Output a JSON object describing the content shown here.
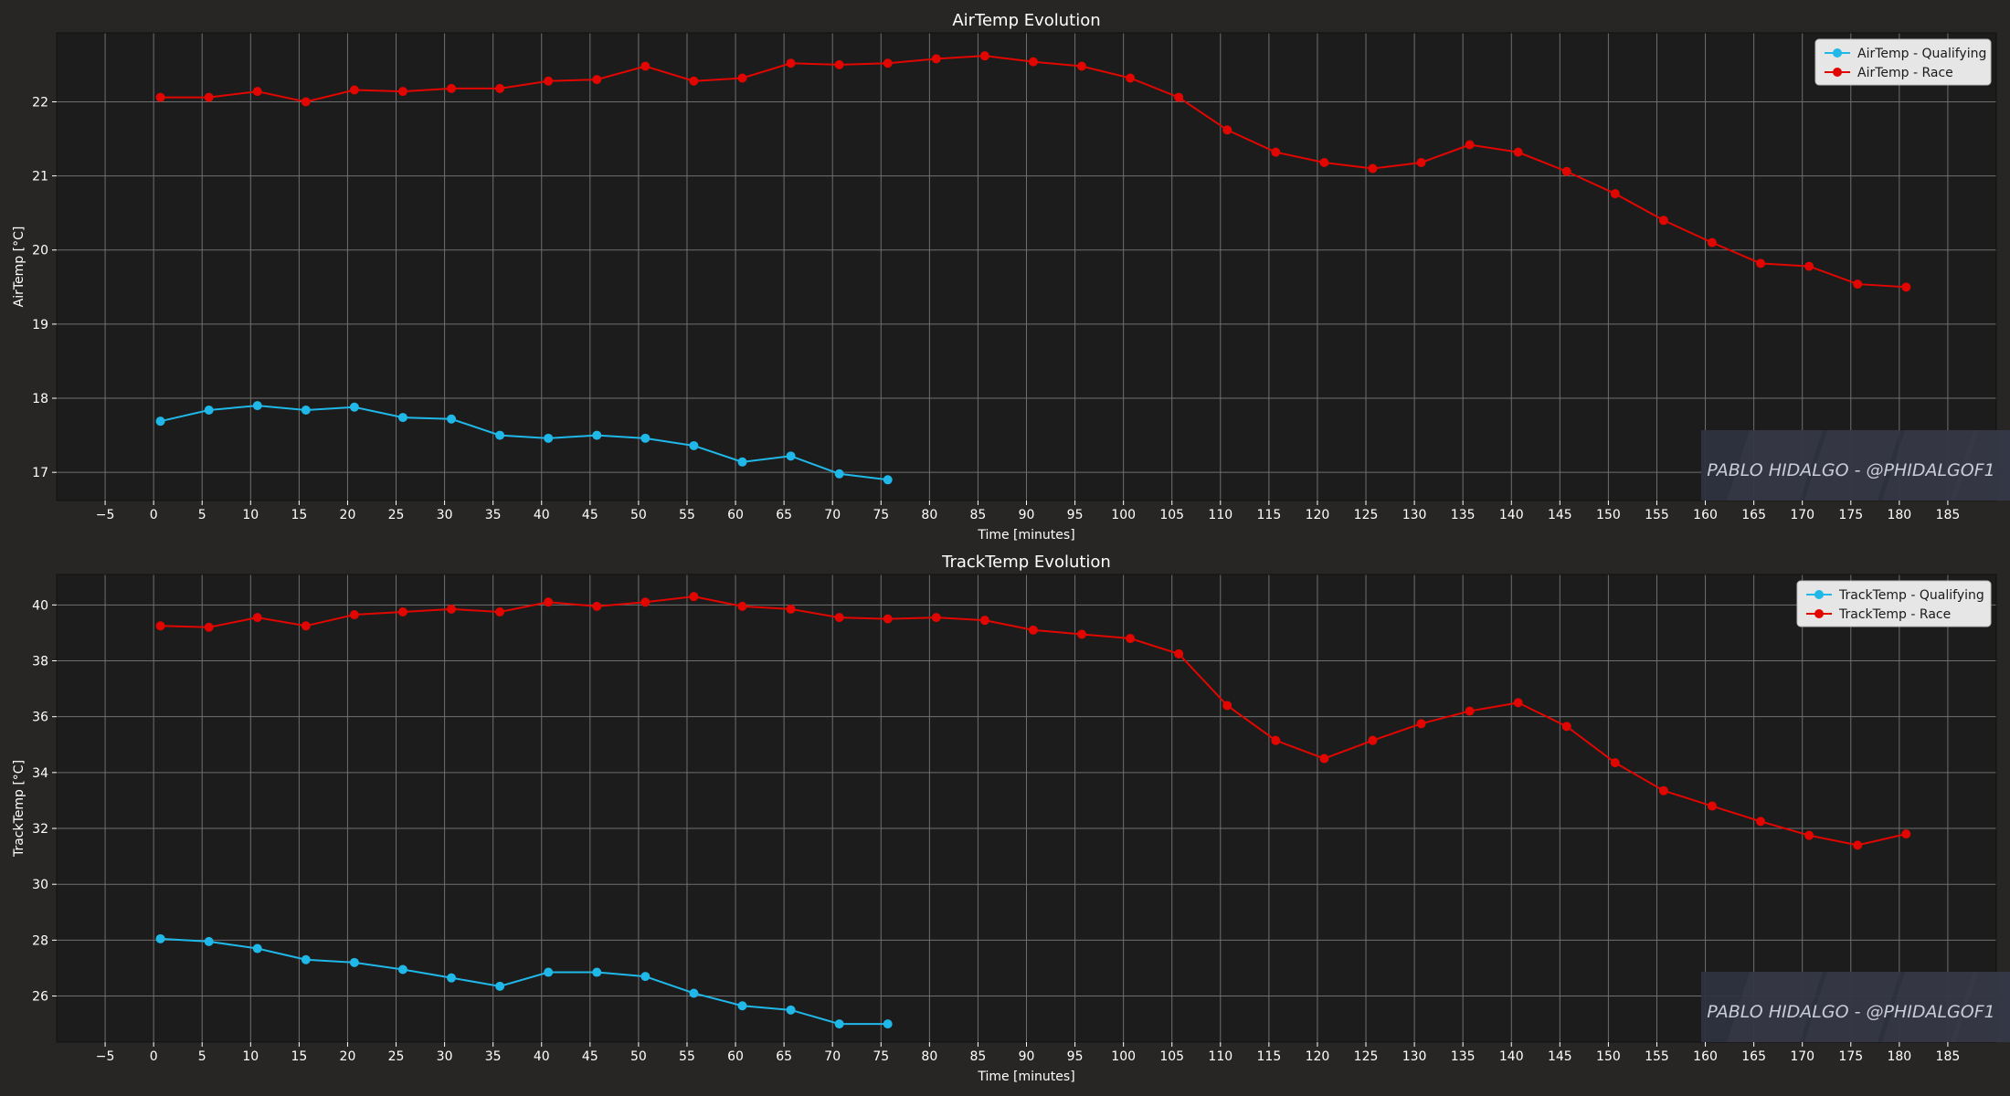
{
  "colors": {
    "figure_bg": "#282625",
    "plot_bg": "#1d1c1c",
    "grid": "#6f6f6f",
    "text": "#ffffff",
    "qualifying": "#1fb8e8",
    "race": "#e10600",
    "legend_bg": "#e6e6e6",
    "watermark_bg": "#2f3240"
  },
  "watermark": {
    "text": "PABLO HIDALGO - @PHIDALGOF1"
  },
  "chart_data": [
    {
      "type": "line",
      "title": "AirTemp Evolution",
      "xlabel": "Time [minutes]",
      "ylabel": "AirTemp [°C]",
      "xlim": [
        -10,
        190
      ],
      "ylim": [
        16.62,
        22.93
      ],
      "xticks": [
        -5,
        0,
        5,
        10,
        15,
        20,
        25,
        30,
        35,
        40,
        45,
        50,
        55,
        60,
        65,
        70,
        75,
        80,
        85,
        90,
        95,
        100,
        105,
        110,
        115,
        120,
        125,
        130,
        135,
        140,
        145,
        150,
        155,
        160,
        165,
        170,
        175,
        180,
        185
      ],
      "yticks": [
        17,
        18,
        19,
        20,
        21,
        22
      ],
      "grid": true,
      "legend": "top-right",
      "series": [
        {
          "name": "AirTemp - Qualifying",
          "color": "qualifying",
          "x": [
            0.7,
            5.7,
            10.7,
            15.7,
            20.7,
            25.7,
            30.7,
            35.7,
            40.7,
            45.7,
            50.7,
            55.7,
            60.7,
            65.7,
            70.7,
            75.7
          ],
          "y": [
            17.69,
            17.84,
            17.9,
            17.84,
            17.88,
            17.74,
            17.72,
            17.5,
            17.46,
            17.5,
            17.46,
            17.36,
            17.14,
            17.22,
            16.98,
            16.9
          ]
        },
        {
          "name": "AirTemp - Race",
          "color": "race",
          "x": [
            0.7,
            5.7,
            10.7,
            15.7,
            20.7,
            25.7,
            30.7,
            35.7,
            40.7,
            45.7,
            50.7,
            55.7,
            60.7,
            65.7,
            70.7,
            75.7,
            80.7,
            85.7,
            90.7,
            95.7,
            100.7,
            105.7,
            110.7,
            115.7,
            120.7,
            125.7,
            130.7,
            135.7,
            140.7,
            145.7,
            150.7,
            155.7,
            160.7,
            165.7,
            170.7,
            175.7,
            180.7
          ],
          "y": [
            22.06,
            22.06,
            22.14,
            22.0,
            22.16,
            22.14,
            22.18,
            22.18,
            22.28,
            22.3,
            22.48,
            22.28,
            22.32,
            22.52,
            22.5,
            22.52,
            22.58,
            22.62,
            22.54,
            22.48,
            22.32,
            22.06,
            21.62,
            21.32,
            21.18,
            21.1,
            21.18,
            21.42,
            21.32,
            21.06,
            20.76,
            20.4,
            20.1,
            19.82,
            19.78,
            19.54,
            19.5
          ]
        }
      ]
    },
    {
      "type": "line",
      "title": "TrackTemp Evolution",
      "xlabel": "Time [minutes]",
      "ylabel": "TrackTemp [°C]",
      "xlim": [
        -10,
        190
      ],
      "ylim": [
        24.35,
        41.09
      ],
      "xticks": [
        -5,
        0,
        5,
        10,
        15,
        20,
        25,
        30,
        35,
        40,
        45,
        50,
        55,
        60,
        65,
        70,
        75,
        80,
        85,
        90,
        95,
        100,
        105,
        110,
        115,
        120,
        125,
        130,
        135,
        140,
        145,
        150,
        155,
        160,
        165,
        170,
        175,
        180,
        185
      ],
      "yticks": [
        26,
        28,
        30,
        32,
        34,
        36,
        38,
        40
      ],
      "grid": true,
      "legend": "top-right",
      "series": [
        {
          "name": "TrackTemp - Qualifying",
          "color": "qualifying",
          "x": [
            0.7,
            5.7,
            10.7,
            15.7,
            20.7,
            25.7,
            30.7,
            35.7,
            40.7,
            45.7,
            50.7,
            55.7,
            60.7,
            65.7,
            70.7,
            75.7
          ],
          "y": [
            28.05,
            27.95,
            27.7,
            27.3,
            27.2,
            26.95,
            26.65,
            26.35,
            26.85,
            26.85,
            26.7,
            26.1,
            25.65,
            25.5,
            25.0,
            25.0
          ]
        },
        {
          "name": "TrackTemp - Race",
          "color": "race",
          "x": [
            0.7,
            5.7,
            10.7,
            15.7,
            20.7,
            25.7,
            30.7,
            35.7,
            40.7,
            45.7,
            50.7,
            55.7,
            60.7,
            65.7,
            70.7,
            75.7,
            80.7,
            85.7,
            90.7,
            95.7,
            100.7,
            105.7,
            110.7,
            115.7,
            120.7,
            125.7,
            130.7,
            135.7,
            140.7,
            145.7,
            150.7,
            155.7,
            160.7,
            165.7,
            170.7,
            175.7,
            180.7
          ],
          "y": [
            39.25,
            39.2,
            39.55,
            39.25,
            39.65,
            39.75,
            39.85,
            39.75,
            40.1,
            39.95,
            40.1,
            40.3,
            39.95,
            39.85,
            39.55,
            39.5,
            39.55,
            39.45,
            39.1,
            38.95,
            38.8,
            38.25,
            36.4,
            35.15,
            34.5,
            35.15,
            35.75,
            36.2,
            36.5,
            35.65,
            34.35,
            33.35,
            32.8,
            32.25,
            31.75,
            31.4,
            31.8
          ]
        }
      ]
    }
  ]
}
